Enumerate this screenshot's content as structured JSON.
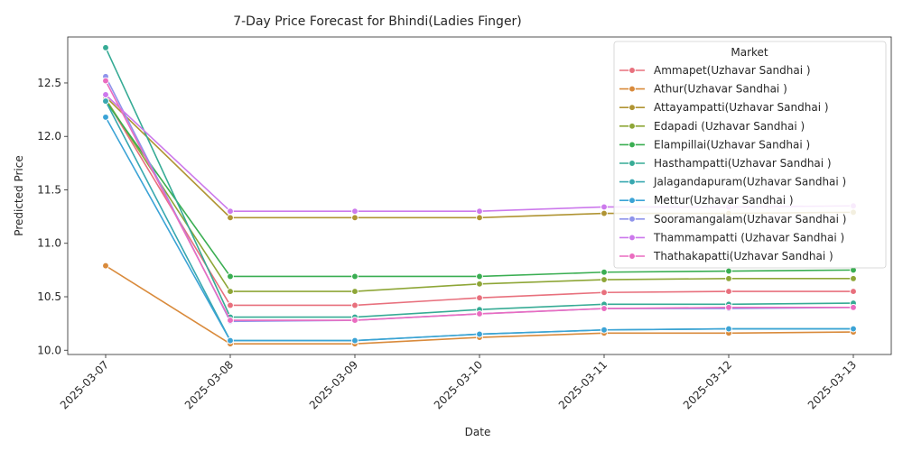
{
  "chart_data": {
    "type": "line",
    "title": "7-Day Price Forecast for Bhindi(Ladies Finger)",
    "xlabel": "Date",
    "ylabel": "Predicted Price",
    "x": [
      "2025-03-07",
      "2025-03-08",
      "2025-03-09",
      "2025-03-10",
      "2025-03-11",
      "2025-03-12",
      "2025-03-13"
    ],
    "ylim": [
      9.96,
      12.93
    ],
    "yticks": [
      "10.0",
      "10.5",
      "11.0",
      "11.5",
      "12.0",
      "12.5"
    ],
    "ytick_values": [
      10.0,
      10.5,
      11.0,
      11.5,
      12.0,
      12.5
    ],
    "grid": false,
    "legend": {
      "title": "Market",
      "placement": "top-right"
    },
    "series": [
      {
        "name": "Ammapet(Uzhavar Sandhai )",
        "color": "#e8707d",
        "values": [
          12.35,
          10.42,
          10.42,
          10.49,
          10.54,
          10.55,
          10.55
        ]
      },
      {
        "name": "Athur(Uzhavar Sandhai )",
        "color": "#d98a3b",
        "values": [
          10.79,
          10.06,
          10.06,
          10.12,
          10.16,
          10.16,
          10.17
        ]
      },
      {
        "name": "Attayampatti(Uzhavar Sandhai )",
        "color": "#b09433",
        "values": [
          12.37,
          11.24,
          11.24,
          11.24,
          11.28,
          11.28,
          11.29
        ]
      },
      {
        "name": "Edapadi (Uzhavar Sandhai )",
        "color": "#8ea637",
        "values": [
          12.35,
          10.55,
          10.55,
          10.62,
          10.66,
          10.67,
          10.67
        ]
      },
      {
        "name": "Elampillai(Uzhavar Sandhai )",
        "color": "#3aae52",
        "values": [
          12.33,
          10.69,
          10.69,
          10.69,
          10.73,
          10.74,
          10.75
        ]
      },
      {
        "name": "Hasthampatti(Uzhavar Sandhai )",
        "color": "#36ab95",
        "values": [
          12.83,
          10.31,
          10.31,
          10.38,
          10.43,
          10.43,
          10.44
        ]
      },
      {
        "name": "Jalagandapuram(Uzhavar Sandhai )",
        "color": "#38a8b0",
        "values": [
          12.33,
          10.09,
          10.09,
          10.15,
          10.19,
          10.2,
          10.2
        ]
      },
      {
        "name": "Mettur(Uzhavar Sandhai )",
        "color": "#3ba3d6",
        "values": [
          12.18,
          10.09,
          10.09,
          10.15,
          10.19,
          10.2,
          10.2
        ]
      },
      {
        "name": "Sooramangalam(Uzhavar Sandhai )",
        "color": "#8f94eb",
        "values": [
          12.56,
          10.27,
          10.28,
          10.34,
          10.39,
          10.39,
          10.4
        ]
      },
      {
        "name": "Thammampatti (Uzhavar Sandhai )",
        "color": "#cc79ec",
        "values": [
          12.39,
          11.3,
          11.3,
          11.3,
          11.34,
          11.34,
          11.35
        ]
      },
      {
        "name": "Thathakapatti(Uzhavar Sandhai )",
        "color": "#ea6cc0",
        "values": [
          12.52,
          10.28,
          10.28,
          10.34,
          10.39,
          10.4,
          10.4
        ]
      }
    ]
  }
}
